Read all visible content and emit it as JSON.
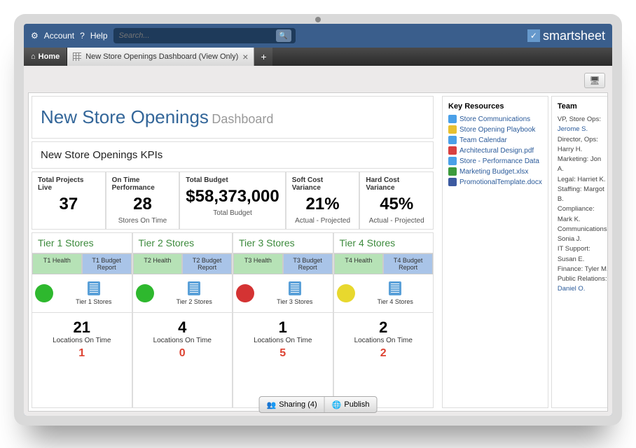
{
  "topbar": {
    "account": "Account",
    "help": "Help",
    "search_placeholder": "Search...",
    "brand": "smartsheet"
  },
  "tabs": {
    "home": "Home",
    "doc": "New Store Openings Dashboard (View Only)"
  },
  "title": {
    "main": "New Store Openings",
    "sub": "Dashboard"
  },
  "kpi_section_title": "New Store Openings KPIs",
  "kpis": [
    {
      "label": "Total Projects Live",
      "value": "37",
      "sub": ""
    },
    {
      "label": "On Time Performance",
      "value": "28",
      "sub": "Stores On Time"
    },
    {
      "label": "Total Budget",
      "value": "$58,373,000",
      "sub": "Total Budget"
    },
    {
      "label": "Soft Cost Variance",
      "value": "21%",
      "sub": "Actual - Projected"
    },
    {
      "label": "Hard Cost Variance",
      "value": "45%",
      "sub": "Actual - Projected"
    }
  ],
  "tiers": [
    {
      "name": "Tier 1 Stores",
      "health_tab": "T1 Health",
      "budget_tab": "T1 Budget Report",
      "dot_color": "#2eb82e",
      "sheet_label": "Tier 1 Stores",
      "on_time": "21",
      "on_time_label": "Locations On Time",
      "late": "1"
    },
    {
      "name": "Tier 2 Stores",
      "health_tab": "T2 Health",
      "budget_tab": "T2 Budget Report",
      "dot_color": "#2eb82e",
      "sheet_label": "Tier 2 Stores",
      "on_time": "4",
      "on_time_label": "Locations On Time",
      "late": "0"
    },
    {
      "name": "Tier 3 Stores",
      "health_tab": "T3 Health",
      "budget_tab": "T3 Budget Report",
      "dot_color": "#d43333",
      "sheet_label": "Tier 3 Stores",
      "on_time": "1",
      "on_time_label": "Locations On Time",
      "late": "5"
    },
    {
      "name": "Tier 4 Stores",
      "health_tab": "T4 Health",
      "budget_tab": "T4 Budget Report",
      "dot_color": "#e8d82e",
      "sheet_label": "Tier 4 Stores",
      "on_time": "2",
      "on_time_label": "Locations On Time",
      "late": "2"
    }
  ],
  "resources": {
    "title": "Key Resources",
    "items": [
      {
        "label": "Store Communications",
        "color": "#4aa0e8"
      },
      {
        "label": "Store Opening Playbook",
        "color": "#e8c030"
      },
      {
        "label": "Team Calendar",
        "color": "#4aa0e8"
      },
      {
        "label": "Architectural Design.pdf",
        "color": "#d84040"
      },
      {
        "label": "Store - Performance Data",
        "color": "#4aa0e8"
      },
      {
        "label": "Marketing Budget.xlsx",
        "color": "#3c9a3c"
      },
      {
        "label": "PromotionalTemplate.docx",
        "color": "#3c5aa0"
      }
    ]
  },
  "team": {
    "title": "Team",
    "members": [
      {
        "role": "VP, Store Ops:",
        "name": "Jerome S.",
        "link": true
      },
      {
        "role": "Director, Ops:",
        "name": "Harry H.",
        "link": false
      },
      {
        "role": "Marketing:",
        "name": "Jon A.",
        "link": false
      },
      {
        "role": "Legal:",
        "name": "Harriet K.",
        "link": false
      },
      {
        "role": "Staffing:",
        "name": "Margot B.",
        "link": false
      },
      {
        "role": "Compliance:",
        "name": "Mark K.",
        "link": false
      },
      {
        "role": "Communications:",
        "name": "Sonia J.",
        "link": false
      },
      {
        "role": "IT Support:",
        "name": "Susan E.",
        "link": false
      },
      {
        "role": "Finance:",
        "name": "Tyler M.",
        "link": false
      },
      {
        "role": "Public Relations:",
        "name": "Daniel O.",
        "link": true
      }
    ]
  },
  "bottom": {
    "sharing": "Sharing (4)",
    "publish": "Publish"
  }
}
